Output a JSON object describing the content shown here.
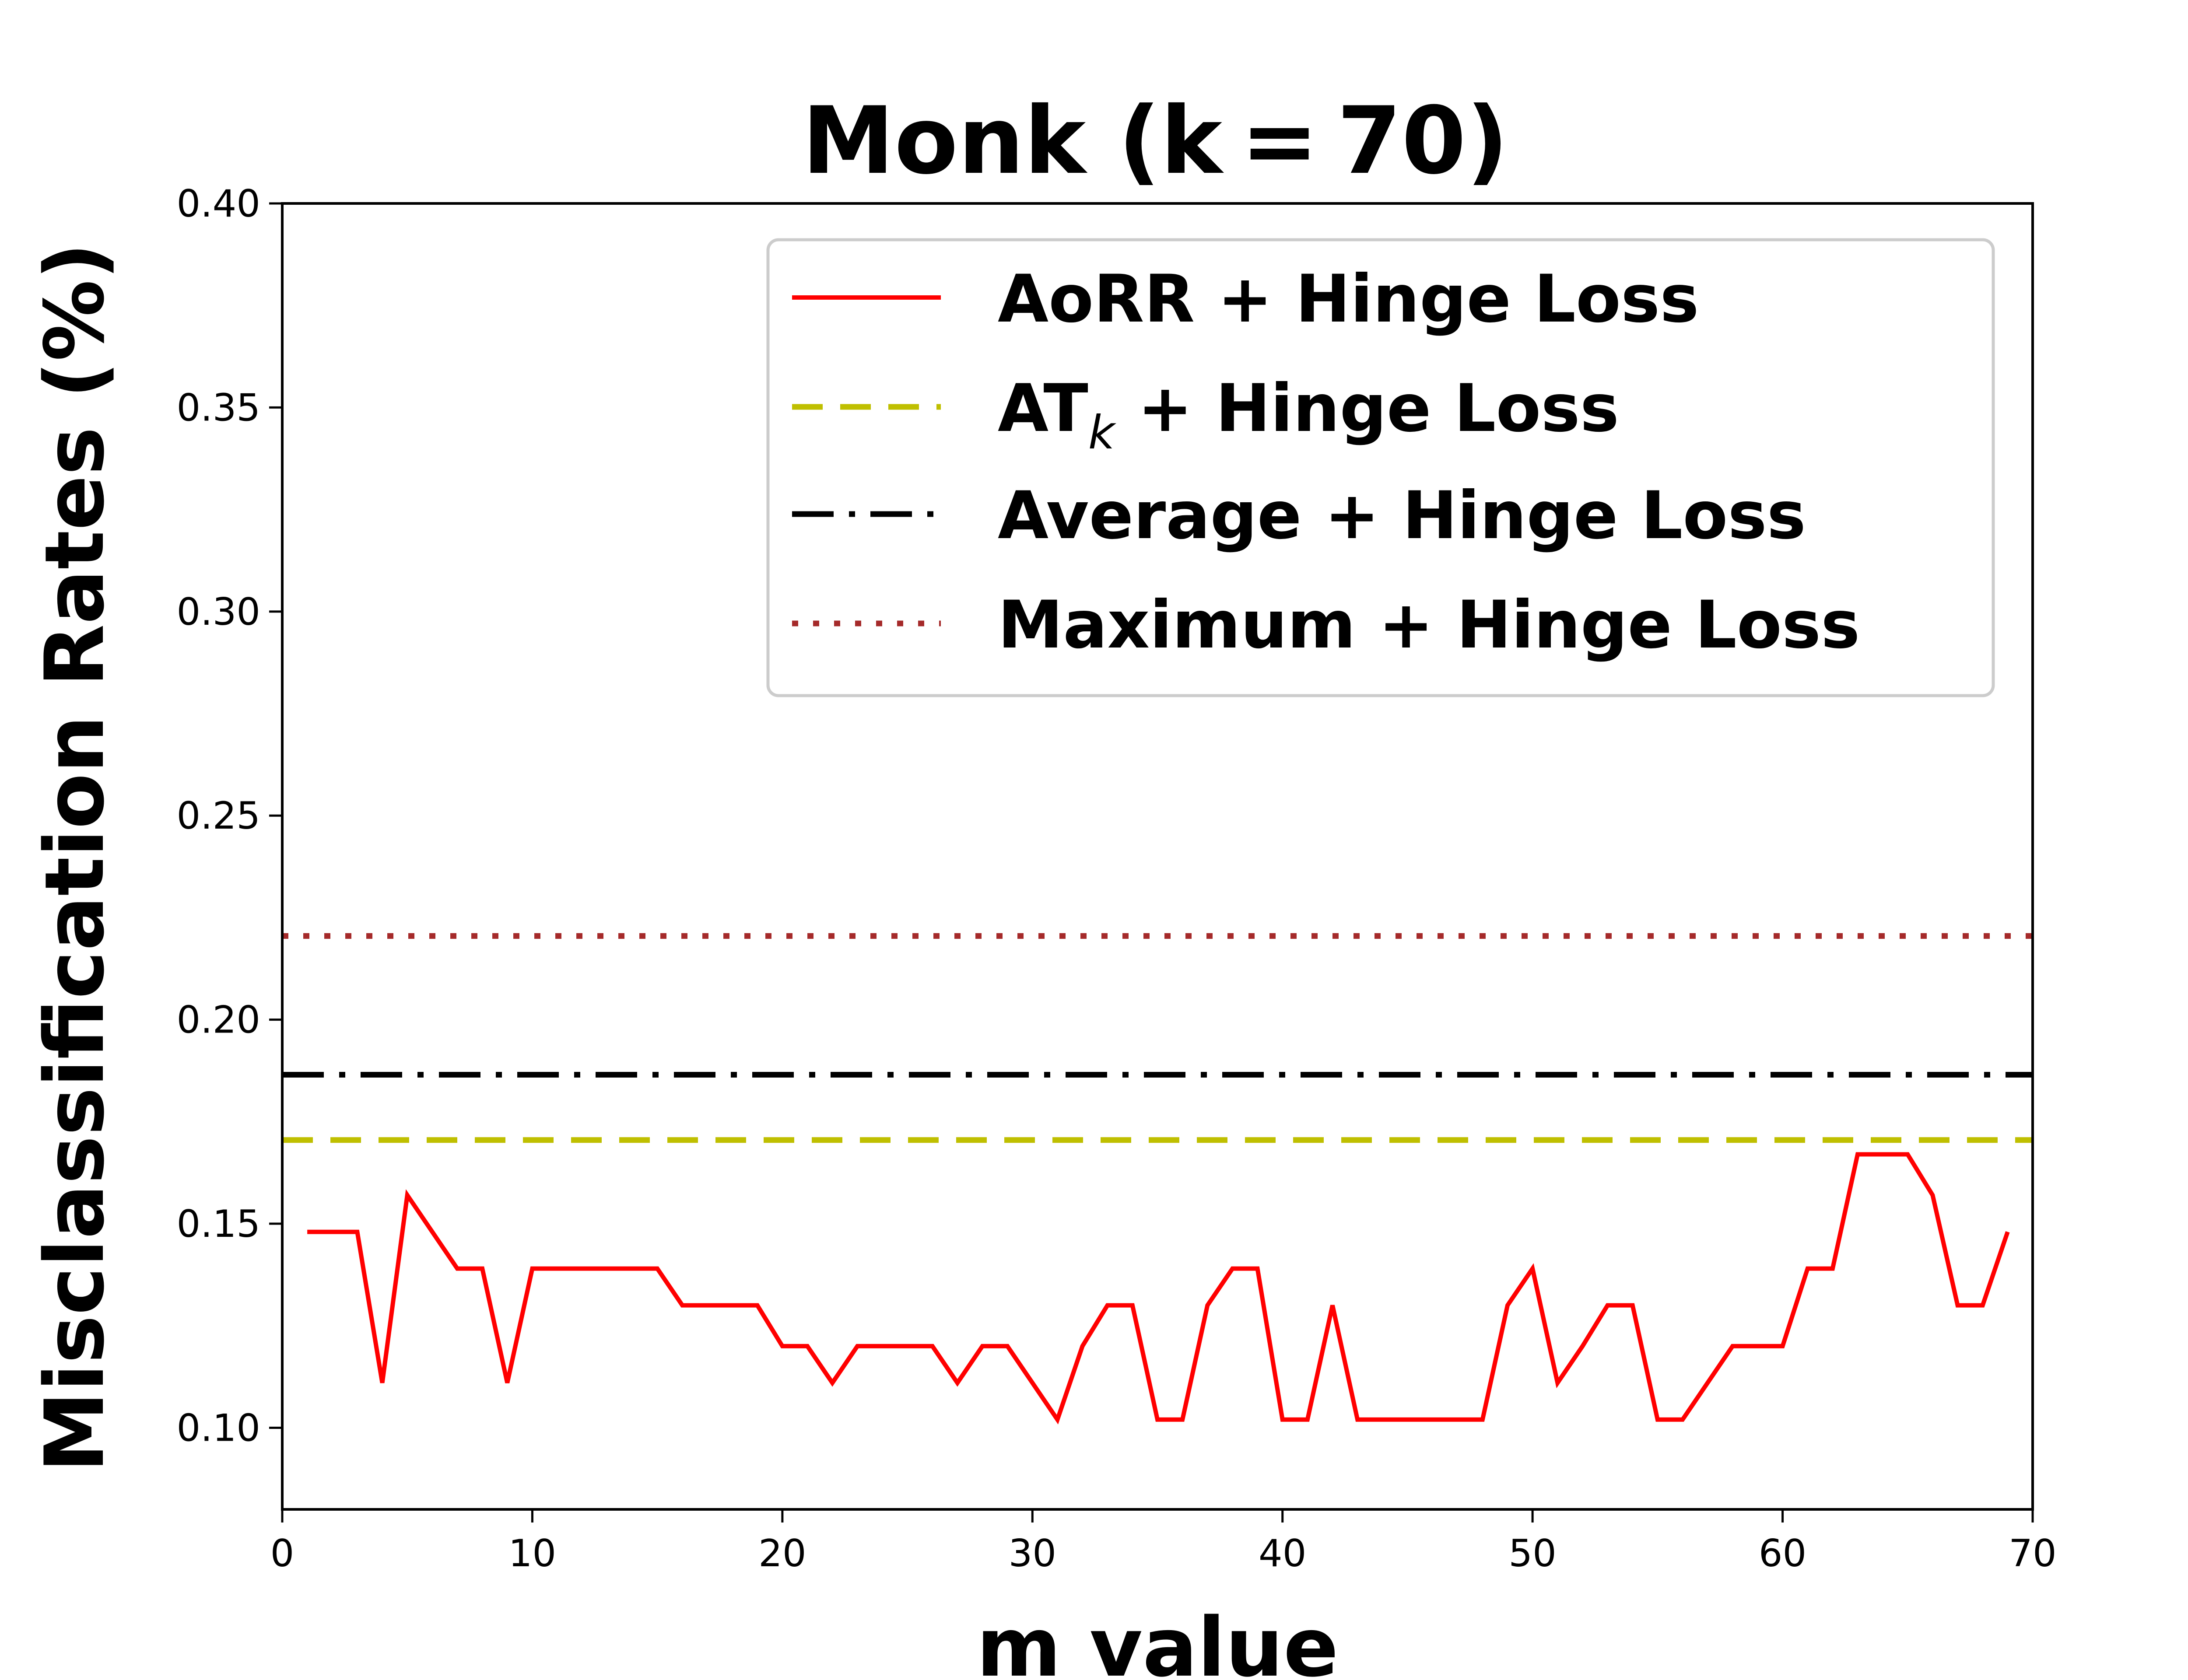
{
  "chart_data": {
    "type": "line",
    "title": "Monk (k = 70)",
    "xlabel": "m value",
    "ylabel": "Misclassification Rates (%)",
    "xlim": [
      0,
      70
    ],
    "ylim": [
      0.08,
      0.4
    ],
    "xticks": [
      0,
      10,
      20,
      30,
      40,
      50,
      60,
      70
    ],
    "yticks": [
      0.1,
      0.15,
      0.2,
      0.25,
      0.3,
      0.35,
      0.4
    ],
    "xtick_labels": [
      "0",
      "10",
      "20",
      "30",
      "40",
      "50",
      "60",
      "70"
    ],
    "ytick_labels": [
      "0.10",
      "0.15",
      "0.20",
      "0.25",
      "0.30",
      "0.35",
      "0.40"
    ],
    "grid": false,
    "legend_position": "top-right",
    "series": [
      {
        "name": "AoRR + Hinge Loss",
        "color": "#ff0000",
        "style": "solid",
        "x": [
          1,
          2,
          3,
          4,
          5,
          6,
          7,
          8,
          9,
          10,
          11,
          12,
          13,
          14,
          15,
          16,
          17,
          18,
          19,
          20,
          21,
          22,
          23,
          24,
          25,
          26,
          27,
          28,
          29,
          30,
          31,
          32,
          33,
          34,
          35,
          36,
          37,
          38,
          39,
          40,
          41,
          42,
          43,
          44,
          45,
          46,
          47,
          48,
          49,
          50,
          51,
          52,
          53,
          54,
          55,
          56,
          57,
          58,
          59,
          60,
          61,
          62,
          63,
          64,
          65,
          66,
          67,
          68,
          69
        ],
        "y": [
          0.148,
          0.148,
          0.148,
          0.111,
          0.157,
          0.148,
          0.139,
          0.139,
          0.111,
          0.139,
          0.139,
          0.139,
          0.139,
          0.139,
          0.139,
          0.13,
          0.13,
          0.13,
          0.13,
          0.12,
          0.12,
          0.111,
          0.12,
          0.12,
          0.12,
          0.12,
          0.111,
          0.12,
          0.12,
          0.111,
          0.102,
          0.12,
          0.13,
          0.13,
          0.102,
          0.102,
          0.13,
          0.139,
          0.139,
          0.102,
          0.102,
          0.13,
          0.102,
          0.102,
          0.102,
          0.102,
          0.102,
          0.102,
          0.13,
          0.139,
          0.111,
          0.12,
          0.13,
          0.13,
          0.102,
          0.102,
          0.111,
          0.12,
          0.12,
          0.12,
          0.139,
          0.139,
          0.167,
          0.167,
          0.167,
          0.157,
          0.13,
          0.13,
          0.148
        ]
      },
      {
        "name": "AT",
        "name_subscript": "k",
        "name_suffix": " + Hinge Loss",
        "color": "#bfbf00",
        "style": "dashed",
        "constant": 0.1705
      },
      {
        "name": "Average + Hinge Loss",
        "color": "#000000",
        "style": "dashdot",
        "constant": 0.1865
      },
      {
        "name": "Maximum + Hinge Loss",
        "color": "#a52a2a",
        "style": "dotted",
        "constant": 0.2205
      }
    ]
  }
}
